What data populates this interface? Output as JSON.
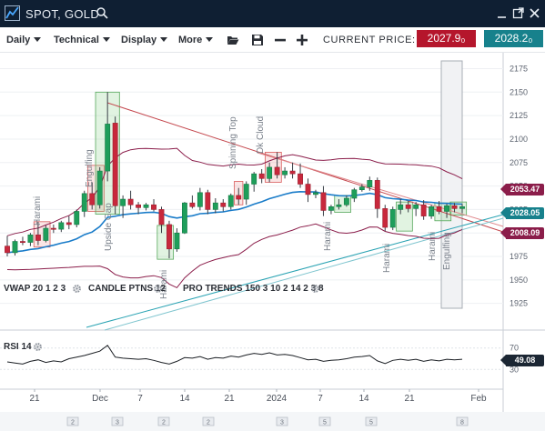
{
  "window": {
    "title": "SPOT, GOLD",
    "icons": [
      "chart-logo-icon",
      "search-icon",
      "minimize-icon",
      "maximize-icon",
      "close-icon"
    ]
  },
  "toolbar": {
    "menus": [
      "Daily",
      "Technical",
      "Display",
      "More"
    ],
    "icons": [
      "folder-open-icon",
      "save-icon",
      "minus-icon",
      "plus-icon"
    ],
    "current_price_label": "CURRENT PRICE:",
    "bid": "2027.9₀",
    "ask": "2028.2₀"
  },
  "chart_data": {
    "type": "candlestick",
    "price_axis": {
      "ticks": [
        "2175",
        "2150",
        "2125",
        "2100",
        "2075",
        "2050",
        "2025",
        "2000",
        "1975",
        "1950",
        "1925"
      ],
      "range": [
        1915,
        2190
      ]
    },
    "price_tags": [
      {
        "label": "2053.47",
        "color": "#8b1d4a"
      },
      {
        "label": "2028.05",
        "color": "#17818c"
      },
      {
        "label": "2008.09",
        "color": "#8b1d4a"
      }
    ],
    "candles": [
      {
        "o": 1986,
        "h": 1997,
        "l": 1975,
        "c": 1979
      },
      {
        "o": 1979,
        "h": 1993,
        "l": 1976,
        "c": 1991
      },
      {
        "o": 1991,
        "h": 1996,
        "l": 1987,
        "c": 1990
      },
      {
        "o": 1990,
        "h": 2000,
        "l": 1986,
        "c": 1998
      },
      {
        "o": 1998,
        "h": 2012,
        "l": 1987,
        "c": 1992
      },
      {
        "o": 1992,
        "h": 2008,
        "l": 1990,
        "c": 2005
      },
      {
        "o": 2005,
        "h": 2009,
        "l": 2000,
        "c": 2004
      },
      {
        "o": 2004,
        "h": 2013,
        "l": 2001,
        "c": 2011
      },
      {
        "o": 2011,
        "h": 2018,
        "l": 2004,
        "c": 2009
      },
      {
        "o": 2009,
        "h": 2025,
        "l": 2006,
        "c": 2023
      },
      {
        "o": 2023,
        "h": 2045,
        "l": 2017,
        "c": 2042
      },
      {
        "o": 2042,
        "h": 2054,
        "l": 2025,
        "c": 2030
      },
      {
        "o": 2030,
        "h": 2070,
        "l": 2026,
        "c": 2066
      },
      {
        "o": 2066,
        "h": 2150,
        "l": 2055,
        "c": 2116
      },
      {
        "o": 2117,
        "h": 2124,
        "l": 2020,
        "c": 2029
      },
      {
        "o": 2029,
        "h": 2040,
        "l": 2016,
        "c": 2036
      },
      {
        "o": 2036,
        "h": 2045,
        "l": 2025,
        "c": 2030
      },
      {
        "o": 2030,
        "h": 2033,
        "l": 2020,
        "c": 2027
      },
      {
        "o": 2027,
        "h": 2032,
        "l": 2024,
        "c": 2030
      },
      {
        "o": 2030,
        "h": 2036,
        "l": 2023,
        "c": 2025
      },
      {
        "o": 2025,
        "h": 2028,
        "l": 2000,
        "c": 2009
      },
      {
        "o": 2009,
        "h": 2013,
        "l": 1973,
        "c": 1983
      },
      {
        "o": 1983,
        "h": 2005,
        "l": 1980,
        "c": 2000
      },
      {
        "o": 2000,
        "h": 2033,
        "l": 1999,
        "c": 2032
      },
      {
        "o": 2032,
        "h": 2040,
        "l": 2026,
        "c": 2028
      },
      {
        "o": 2028,
        "h": 2048,
        "l": 2024,
        "c": 2043
      },
      {
        "o": 2043,
        "h": 2046,
        "l": 2020,
        "c": 2025
      },
      {
        "o": 2025,
        "h": 2037,
        "l": 2021,
        "c": 2032
      },
      {
        "o": 2032,
        "h": 2036,
        "l": 2023,
        "c": 2028
      },
      {
        "o": 2028,
        "h": 2042,
        "l": 2025,
        "c": 2040
      },
      {
        "o": 2040,
        "h": 2048,
        "l": 2030,
        "c": 2036
      },
      {
        "o": 2036,
        "h": 2055,
        "l": 2030,
        "c": 2052
      },
      {
        "o": 2052,
        "h": 2065,
        "l": 2044,
        "c": 2063
      },
      {
        "o": 2063,
        "h": 2068,
        "l": 2053,
        "c": 2058
      },
      {
        "o": 2058,
        "h": 2075,
        "l": 2054,
        "c": 2070
      },
      {
        "o": 2070,
        "h": 2086,
        "l": 2058,
        "c": 2062
      },
      {
        "o": 2062,
        "h": 2070,
        "l": 2058,
        "c": 2066
      },
      {
        "o": 2066,
        "h": 2075,
        "l": 2058,
        "c": 2063
      },
      {
        "o": 2063,
        "h": 2074,
        "l": 2048,
        "c": 2052
      },
      {
        "o": 2052,
        "h": 2058,
        "l": 2033,
        "c": 2041
      },
      {
        "o": 2041,
        "h": 2046,
        "l": 2037,
        "c": 2043
      },
      {
        "o": 2043,
        "h": 2050,
        "l": 2018,
        "c": 2024
      },
      {
        "o": 2024,
        "h": 2030,
        "l": 2020,
        "c": 2028
      },
      {
        "o": 2028,
        "h": 2036,
        "l": 2025,
        "c": 2030
      },
      {
        "o": 2030,
        "h": 2040,
        "l": 2028,
        "c": 2037
      },
      {
        "o": 2037,
        "h": 2048,
        "l": 2033,
        "c": 2046
      },
      {
        "o": 2046,
        "h": 2052,
        "l": 2044,
        "c": 2049
      },
      {
        "o": 2049,
        "h": 2060,
        "l": 2045,
        "c": 2056
      },
      {
        "o": 2056,
        "h": 2059,
        "l": 2016,
        "c": 2026
      },
      {
        "o": 2026,
        "h": 2030,
        "l": 2002,
        "c": 2006
      },
      {
        "o": 2006,
        "h": 2028,
        "l": 2003,
        "c": 2025
      },
      {
        "o": 2025,
        "h": 2036,
        "l": 2020,
        "c": 2030
      },
      {
        "o": 2030,
        "h": 2034,
        "l": 2022,
        "c": 2026
      },
      {
        "o": 2026,
        "h": 2033,
        "l": 2018,
        "c": 2030
      },
      {
        "o": 2030,
        "h": 2035,
        "l": 2014,
        "c": 2018
      },
      {
        "o": 2018,
        "h": 2030,
        "l": 2015,
        "c": 2028
      },
      {
        "o": 2028,
        "h": 2034,
        "l": 2020,
        "c": 2023
      },
      {
        "o": 2023,
        "h": 2031,
        "l": 2016,
        "c": 2029
      },
      {
        "o": 2029,
        "h": 2032,
        "l": 2022,
        "c": 2026
      },
      {
        "o": 2026,
        "h": 2031,
        "l": 2021,
        "c": 2028
      }
    ],
    "pattern_labels": [
      {
        "text": "Harami",
        "type": "bearish"
      },
      {
        "text": "Engulfing",
        "type": "bullish"
      },
      {
        "text": "Upside Gap",
        "type": "bullish"
      },
      {
        "text": "Harami",
        "type": "bearish"
      },
      {
        "text": "Spinning Top",
        "type": "bearish"
      },
      {
        "text": "Dk Cloud",
        "type": "bearish"
      },
      {
        "text": "Harami",
        "type": "bullish"
      },
      {
        "text": "Harami",
        "type": "bullish"
      },
      {
        "text": "Harami",
        "type": "bullish"
      },
      {
        "text": "Engulfing",
        "type": "bullish"
      }
    ],
    "indicator_labels": [
      {
        "text": "VWAP 20 1 2 3"
      },
      {
        "text": "CANDLE PTNS 12"
      },
      {
        "text": "PRO TRENDS 150 3 10 2 14 2 3 8"
      }
    ],
    "rsi": {
      "label": "RSI 14",
      "ticks": [
        "70",
        "30"
      ],
      "value": "49.08",
      "values": [
        44,
        42,
        40,
        45,
        48,
        43,
        46,
        44,
        50,
        53,
        56,
        60,
        64,
        75,
        53,
        51,
        50,
        49,
        50,
        47,
        43,
        40,
        45,
        52,
        51,
        54,
        49,
        52,
        51,
        55,
        53,
        57,
        60,
        58,
        61,
        57,
        58,
        56,
        52,
        48,
        49,
        45,
        47,
        48,
        50,
        53,
        54,
        56,
        46,
        41,
        47,
        49,
        47,
        49,
        45,
        48,
        46,
        49,
        48,
        49
      ]
    },
    "x_axis": {
      "ticks": [
        "21",
        "Dec",
        "7",
        "14",
        "21",
        "2024",
        "7",
        "14",
        "21",
        "Feb"
      ]
    },
    "bottom_markers": [
      "2",
      "3",
      "2",
      "2",
      "3",
      "5",
      "5",
      "8"
    ]
  }
}
